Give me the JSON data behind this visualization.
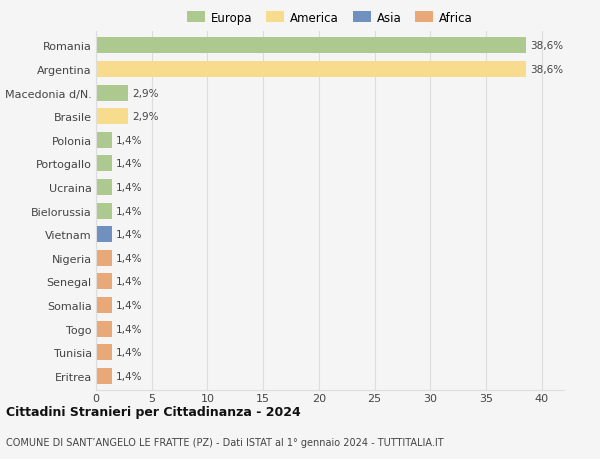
{
  "countries": [
    "Romania",
    "Argentina",
    "Macedonia d/N.",
    "Brasile",
    "Polonia",
    "Portogallo",
    "Ucraina",
    "Bielorussia",
    "Vietnam",
    "Nigeria",
    "Senegal",
    "Somalia",
    "Togo",
    "Tunisia",
    "Eritrea"
  ],
  "values": [
    38.6,
    38.6,
    2.9,
    2.9,
    1.4,
    1.4,
    1.4,
    1.4,
    1.4,
    1.4,
    1.4,
    1.4,
    1.4,
    1.4,
    1.4
  ],
  "labels": [
    "38,6%",
    "38,6%",
    "2,9%",
    "2,9%",
    "1,4%",
    "1,4%",
    "1,4%",
    "1,4%",
    "1,4%",
    "1,4%",
    "1,4%",
    "1,4%",
    "1,4%",
    "1,4%",
    "1,4%"
  ],
  "colors": [
    "#adc990",
    "#f8dc8e",
    "#adc990",
    "#f8dc8e",
    "#adc990",
    "#adc990",
    "#adc990",
    "#adc990",
    "#7090c0",
    "#e8a878",
    "#e8a878",
    "#e8a878",
    "#e8a878",
    "#e8a878",
    "#e8a878"
  ],
  "continent_colors": {
    "Europa": "#adc990",
    "America": "#f8dc8e",
    "Asia": "#7090c0",
    "Africa": "#e8a878"
  },
  "title": "Cittadini Stranieri per Cittadinanza - 2024",
  "subtitle": "COMUNE DI SANT’ANGELO LE FRATTE (PZ) - Dati ISTAT al 1° gennaio 2024 - TUTTITALIA.IT",
  "xlim": [
    0,
    42
  ],
  "xticks": [
    0,
    5,
    10,
    15,
    20,
    25,
    30,
    35,
    40
  ],
  "background_color": "#f5f5f5",
  "grid_color": "#dddddd"
}
